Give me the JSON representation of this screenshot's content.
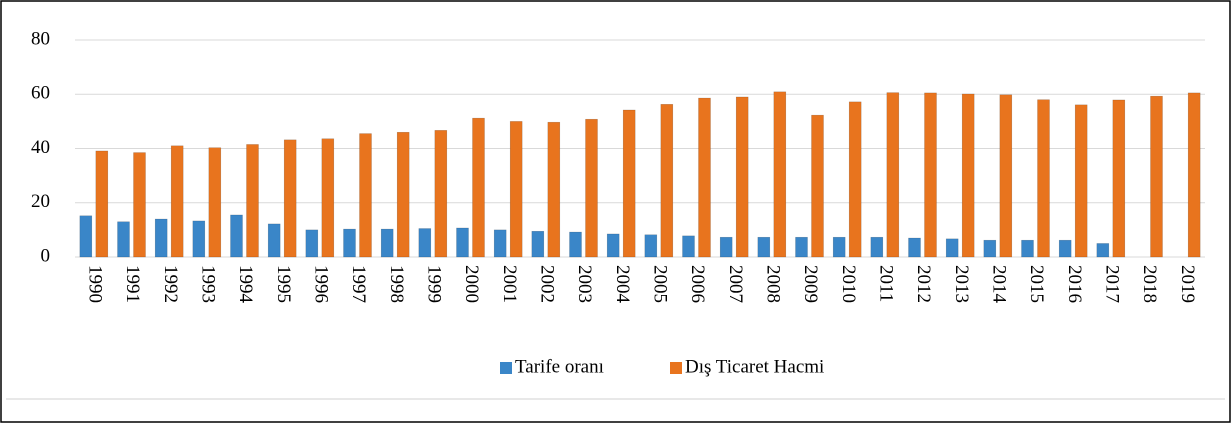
{
  "chart_data": {
    "type": "bar",
    "categories": [
      "1990",
      "1991",
      "1992",
      "1993",
      "1994",
      "1995",
      "1996",
      "1997",
      "1998",
      "1999",
      "2000",
      "2001",
      "2002",
      "2003",
      "2004",
      "2005",
      "2006",
      "2007",
      "2008",
      "2009",
      "2010",
      "2011",
      "2012",
      "2013",
      "2014",
      "2015",
      "2016",
      "2017",
      "2018",
      "2019"
    ],
    "series": [
      {
        "name": "Tarife oranı",
        "color": "#3a86c8",
        "values": [
          15.2,
          13,
          14,
          13.3,
          15.5,
          12.2,
          10,
          10.3,
          10.3,
          10.5,
          10.7,
          10,
          9.5,
          9.2,
          8.5,
          8.2,
          7.8,
          7.3,
          7.3,
          7.3,
          7.3,
          7.3,
          7,
          6.7,
          6.2,
          6.2,
          6.2,
          5,
          null,
          null
        ]
      },
      {
        "name": "Dış Ticaret Hacmi",
        "color": "#e8741e",
        "values": [
          39.1,
          38.5,
          41,
          40.3,
          41.5,
          43.2,
          43.6,
          45.5,
          46,
          46.7,
          51.2,
          50,
          49.7,
          50.8,
          54.2,
          56.3,
          58.6,
          59,
          60.9,
          52.3,
          57.2,
          60.6,
          60.5,
          60.1,
          59.8,
          58,
          56.1,
          57.9,
          59.3,
          60.5
        ]
      }
    ],
    "ylim": [
      0,
      80
    ],
    "yticks": [
      0,
      20,
      40,
      60,
      80
    ],
    "grid": true,
    "legend": "bottom"
  }
}
